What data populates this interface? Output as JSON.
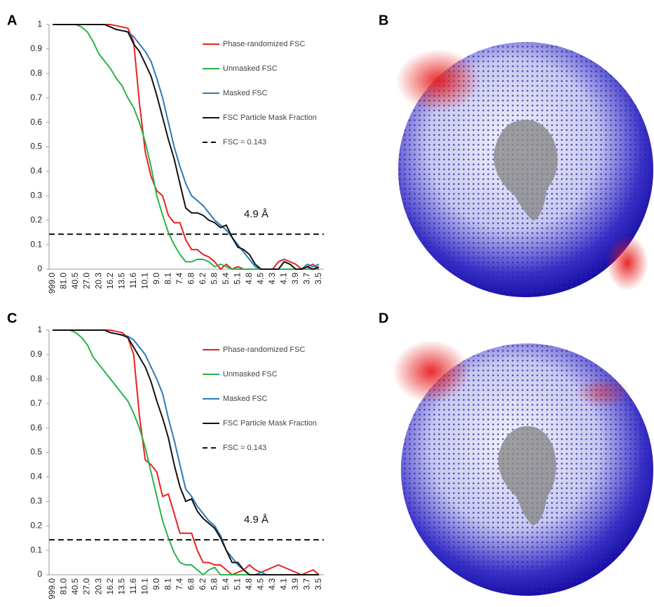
{
  "panel_labels": [
    "A",
    "B",
    "C",
    "D"
  ],
  "chart_data": [
    {
      "type": "line",
      "categories": [
        "999.0",
        null,
        "81.0",
        null,
        "40.5",
        null,
        "27.0",
        null,
        "20.3",
        null,
        "16.2",
        null,
        "13.5",
        null,
        "11.6",
        null,
        "10.1",
        null,
        "9.0",
        null,
        "8.1",
        null,
        "7.4",
        null,
        "6.8",
        null,
        "6.2",
        null,
        "5.8",
        null,
        "5.4",
        null,
        "5.1",
        null,
        "4.8",
        null,
        "4.5",
        null,
        "4.3",
        null,
        "4.1",
        null,
        "3.9",
        null,
        "3.7",
        null,
        "3.5"
      ],
      "ylim": [
        0,
        1
      ],
      "yticks": [
        0,
        0.1,
        0.2,
        0.3,
        0.4,
        0.5,
        0.6,
        0.7,
        0.8,
        0.9,
        1
      ],
      "series": [
        {
          "name": "Phase-randomized FSC",
          "color": "#e8211f",
          "values": [
            1,
            1,
            1,
            1,
            1,
            1,
            1,
            1,
            1,
            1,
            1,
            0.995,
            0.99,
            0.985,
            0.93,
            0.68,
            0.48,
            0.38,
            0.32,
            0.3,
            0.22,
            0.19,
            0.19,
            0.12,
            0.08,
            0.08,
            0.06,
            0.05,
            0.03,
            0,
            0.02,
            0,
            0.01,
            0,
            0,
            0,
            0,
            0,
            0,
            0.03,
            0.04,
            0.03,
            0.02,
            0,
            0.01,
            0.02,
            0
          ]
        },
        {
          "name": "Unmasked FSC",
          "color": "#2ab24a",
          "values": [
            1,
            1,
            1,
            1,
            1,
            0.99,
            0.97,
            0.93,
            0.88,
            0.85,
            0.82,
            0.78,
            0.75,
            0.7,
            0.66,
            0.6,
            0.52,
            0.42,
            0.3,
            0.22,
            0.15,
            0.1,
            0.06,
            0.03,
            0.03,
            0.04,
            0.04,
            0.03,
            0.01,
            0.02,
            0.01,
            0,
            0,
            0,
            0,
            0,
            0,
            0,
            0,
            0,
            0,
            0,
            0,
            0,
            0,
            0,
            0
          ]
        },
        {
          "name": "Masked FSC",
          "color": "#2a7ab8",
          "values": [
            1,
            1,
            1,
            1,
            1,
            1,
            1,
            1,
            1,
            1,
            0.99,
            0.98,
            0.975,
            0.97,
            0.95,
            0.92,
            0.89,
            0.85,
            0.78,
            0.7,
            0.6,
            0.5,
            0.42,
            0.35,
            0.3,
            0.28,
            0.26,
            0.23,
            0.2,
            0.18,
            0.16,
            0.13,
            0.1,
            0.07,
            0.04,
            0.01,
            0,
            0,
            0,
            0,
            0.03,
            0.02,
            0,
            0,
            0.02,
            0.01,
            0.02
          ]
        },
        {
          "name": "FSC Particle Mask Fraction",
          "color": "#111111",
          "values": [
            1,
            1,
            1,
            1,
            1,
            1,
            1,
            1,
            1,
            1,
            0.99,
            0.98,
            0.975,
            0.97,
            0.92,
            0.89,
            0.84,
            0.79,
            0.71,
            0.62,
            0.53,
            0.45,
            0.35,
            0.25,
            0.23,
            0.23,
            0.22,
            0.2,
            0.19,
            0.17,
            0.18,
            0.13,
            0.09,
            0.08,
            0.06,
            0.02,
            0,
            0,
            0,
            0,
            0.03,
            0.02,
            0,
            0,
            0.01,
            0,
            0.01
          ]
        }
      ],
      "threshold": {
        "label": "FSC = 0.143",
        "value": 0.143
      },
      "annotation": "4.9 Å"
    },
    {
      "type": "line",
      "categories": [
        "999.0",
        null,
        "81.0",
        null,
        "40.5",
        null,
        "27.0",
        null,
        "20.3",
        null,
        "16.2",
        null,
        "13.5",
        null,
        "11.6",
        null,
        "10.1",
        null,
        "9.0",
        null,
        "8.1",
        null,
        "7.4",
        null,
        "6.8",
        null,
        "6.2",
        null,
        "5.8",
        null,
        "5.4",
        null,
        "5.1",
        null,
        "4.8",
        null,
        "4.5",
        null,
        "4.3",
        null,
        "4.1",
        null,
        "3.9",
        null,
        "3.7",
        null,
        "3.5"
      ],
      "ylim": [
        0,
        1
      ],
      "yticks": [
        0,
        0.1,
        0.2,
        0.3,
        0.4,
        0.5,
        0.6,
        0.7,
        0.8,
        0.9,
        1
      ],
      "series": [
        {
          "name": "Phase-randomized FSC",
          "color": "#e8211f",
          "values": [
            1,
            1,
            1,
            1,
            1,
            1,
            1,
            1,
            1,
            1,
            1,
            0.995,
            0.99,
            0.97,
            0.9,
            0.65,
            0.47,
            0.45,
            0.42,
            0.32,
            0.33,
            0.25,
            0.17,
            0.17,
            0.17,
            0.1,
            0.05,
            0.05,
            0.04,
            0.04,
            0.02,
            0,
            0.01,
            0.02,
            0.04,
            0.02,
            0.01,
            0.02,
            0.03,
            0.04,
            0.03,
            0.02,
            0.01,
            0,
            0.01,
            0.02,
            0
          ]
        },
        {
          "name": "Unmasked FSC",
          "color": "#2ab24a",
          "values": [
            1,
            1,
            1,
            1,
            0.99,
            0.97,
            0.94,
            0.89,
            0.86,
            0.83,
            0.8,
            0.77,
            0.74,
            0.71,
            0.66,
            0.6,
            0.52,
            0.42,
            0.32,
            0.22,
            0.15,
            0.09,
            0.05,
            0.04,
            0.04,
            0.02,
            0,
            0.02,
            0.03,
            0,
            0,
            0,
            0,
            0,
            0,
            0,
            0,
            0,
            0,
            0,
            0,
            0,
            0,
            0,
            0,
            0,
            0
          ]
        },
        {
          "name": "Masked FSC",
          "color": "#2a7ab8",
          "values": [
            1,
            1,
            1,
            1,
            1,
            1,
            1,
            1,
            1,
            1,
            0.99,
            0.985,
            0.98,
            0.975,
            0.96,
            0.93,
            0.9,
            0.85,
            0.8,
            0.74,
            0.64,
            0.55,
            0.45,
            0.35,
            0.32,
            0.28,
            0.25,
            0.22,
            0.2,
            0.16,
            0.1,
            0.07,
            0.04,
            0.02,
            0,
            0,
            0.01,
            0,
            0,
            0,
            0,
            0,
            0,
            0,
            0,
            0,
            0
          ]
        },
        {
          "name": "FSC Particle Mask Fraction",
          "color": "#111111",
          "values": [
            1,
            1,
            1,
            1,
            1,
            1,
            1,
            1,
            1,
            1,
            0.99,
            0.985,
            0.98,
            0.97,
            0.93,
            0.89,
            0.85,
            0.79,
            0.71,
            0.64,
            0.56,
            0.45,
            0.36,
            0.3,
            0.31,
            0.26,
            0.23,
            0.21,
            0.19,
            0.15,
            0.1,
            0.05,
            0.05,
            0.02,
            0,
            0,
            0,
            0,
            0,
            0,
            0,
            0,
            0,
            0,
            0,
            0,
            0
          ]
        }
      ],
      "threshold": {
        "label": "FSC = 0.143",
        "value": 0.143
      },
      "annotation": "4.9 Å"
    }
  ]
}
